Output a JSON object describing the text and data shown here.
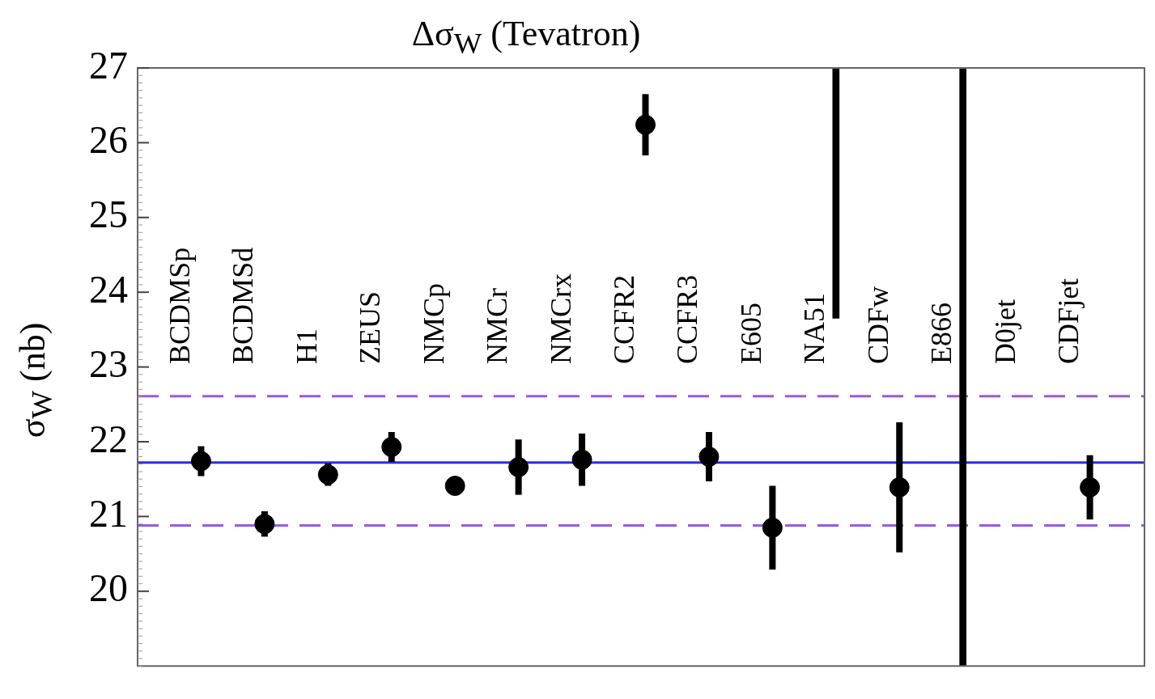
{
  "chart_data": {
    "type": "scatter",
    "title": "Δσ$_{W}$ (Tevatron)",
    "ylabel": "σ$_{W}$ (nb)",
    "categories": [
      "BCDMSp",
      "BCDMSd",
      "H1",
      "ZEUS",
      "NMCp",
      "NMCr",
      "NMCrx",
      "CCFR2",
      "CCFR3",
      "E605",
      "NA51",
      "CDFw",
      "E866",
      "D0jet",
      "CDFjet"
    ],
    "series": [
      {
        "color": "#000000",
        "values": [
          21.74,
          20.9,
          21.56,
          21.93,
          21.41,
          21.66,
          21.76,
          26.24,
          21.8,
          20.85,
          null,
          21.39,
          null,
          null,
          21.39
        ],
        "errors": [
          0.2,
          0.17,
          0.15,
          0.2,
          0.07,
          0.37,
          0.35,
          0.41,
          0.33,
          0.56,
          null,
          0.87,
          null,
          null,
          0.43
        ]
      },
      {
        "type": "bar",
        "color": "#000000",
        "values": [
          null,
          null,
          null,
          null,
          null,
          null,
          null,
          null,
          null,
          null,
          3.35,
          null,
          8,
          null,
          null
        ],
        "base": [
          null,
          null,
          null,
          null,
          null,
          null,
          null,
          null,
          null,
          null,
          23.65,
          null,
          19,
          null,
          null
        ]
      }
    ],
    "ylim": [
      19,
      27
    ],
    "yticks": [
      20,
      21,
      22,
      23,
      24,
      25,
      26,
      27
    ],
    "grid": false,
    "legend": false,
    "marker": "circle",
    "ref_lines": [
      {
        "axis": "y",
        "value": 21.72,
        "color": "#2b2bef",
        "line_style": "solid"
      },
      {
        "axis": "y",
        "value": 22.61,
        "color": "#9b59e0",
        "line_style": "dashed"
      },
      {
        "axis": "y",
        "value": 20.88,
        "color": "#9b59e0",
        "line_style": "dashed"
      }
    ]
  }
}
